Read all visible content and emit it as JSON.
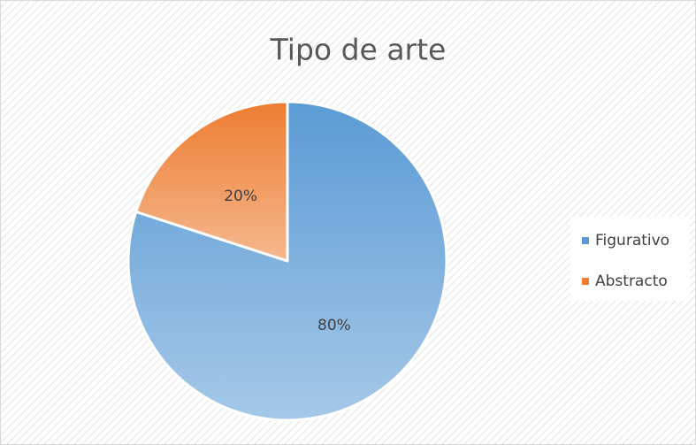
{
  "chart_data": {
    "type": "pie",
    "title": "Tipo de arte",
    "categories": [
      "Figurativo",
      "Abstracto"
    ],
    "values": [
      80,
      20
    ],
    "value_labels": [
      "80%",
      "20%"
    ],
    "colors": [
      "#5b9bd5",
      "#ed7d31"
    ],
    "legend": "right"
  }
}
